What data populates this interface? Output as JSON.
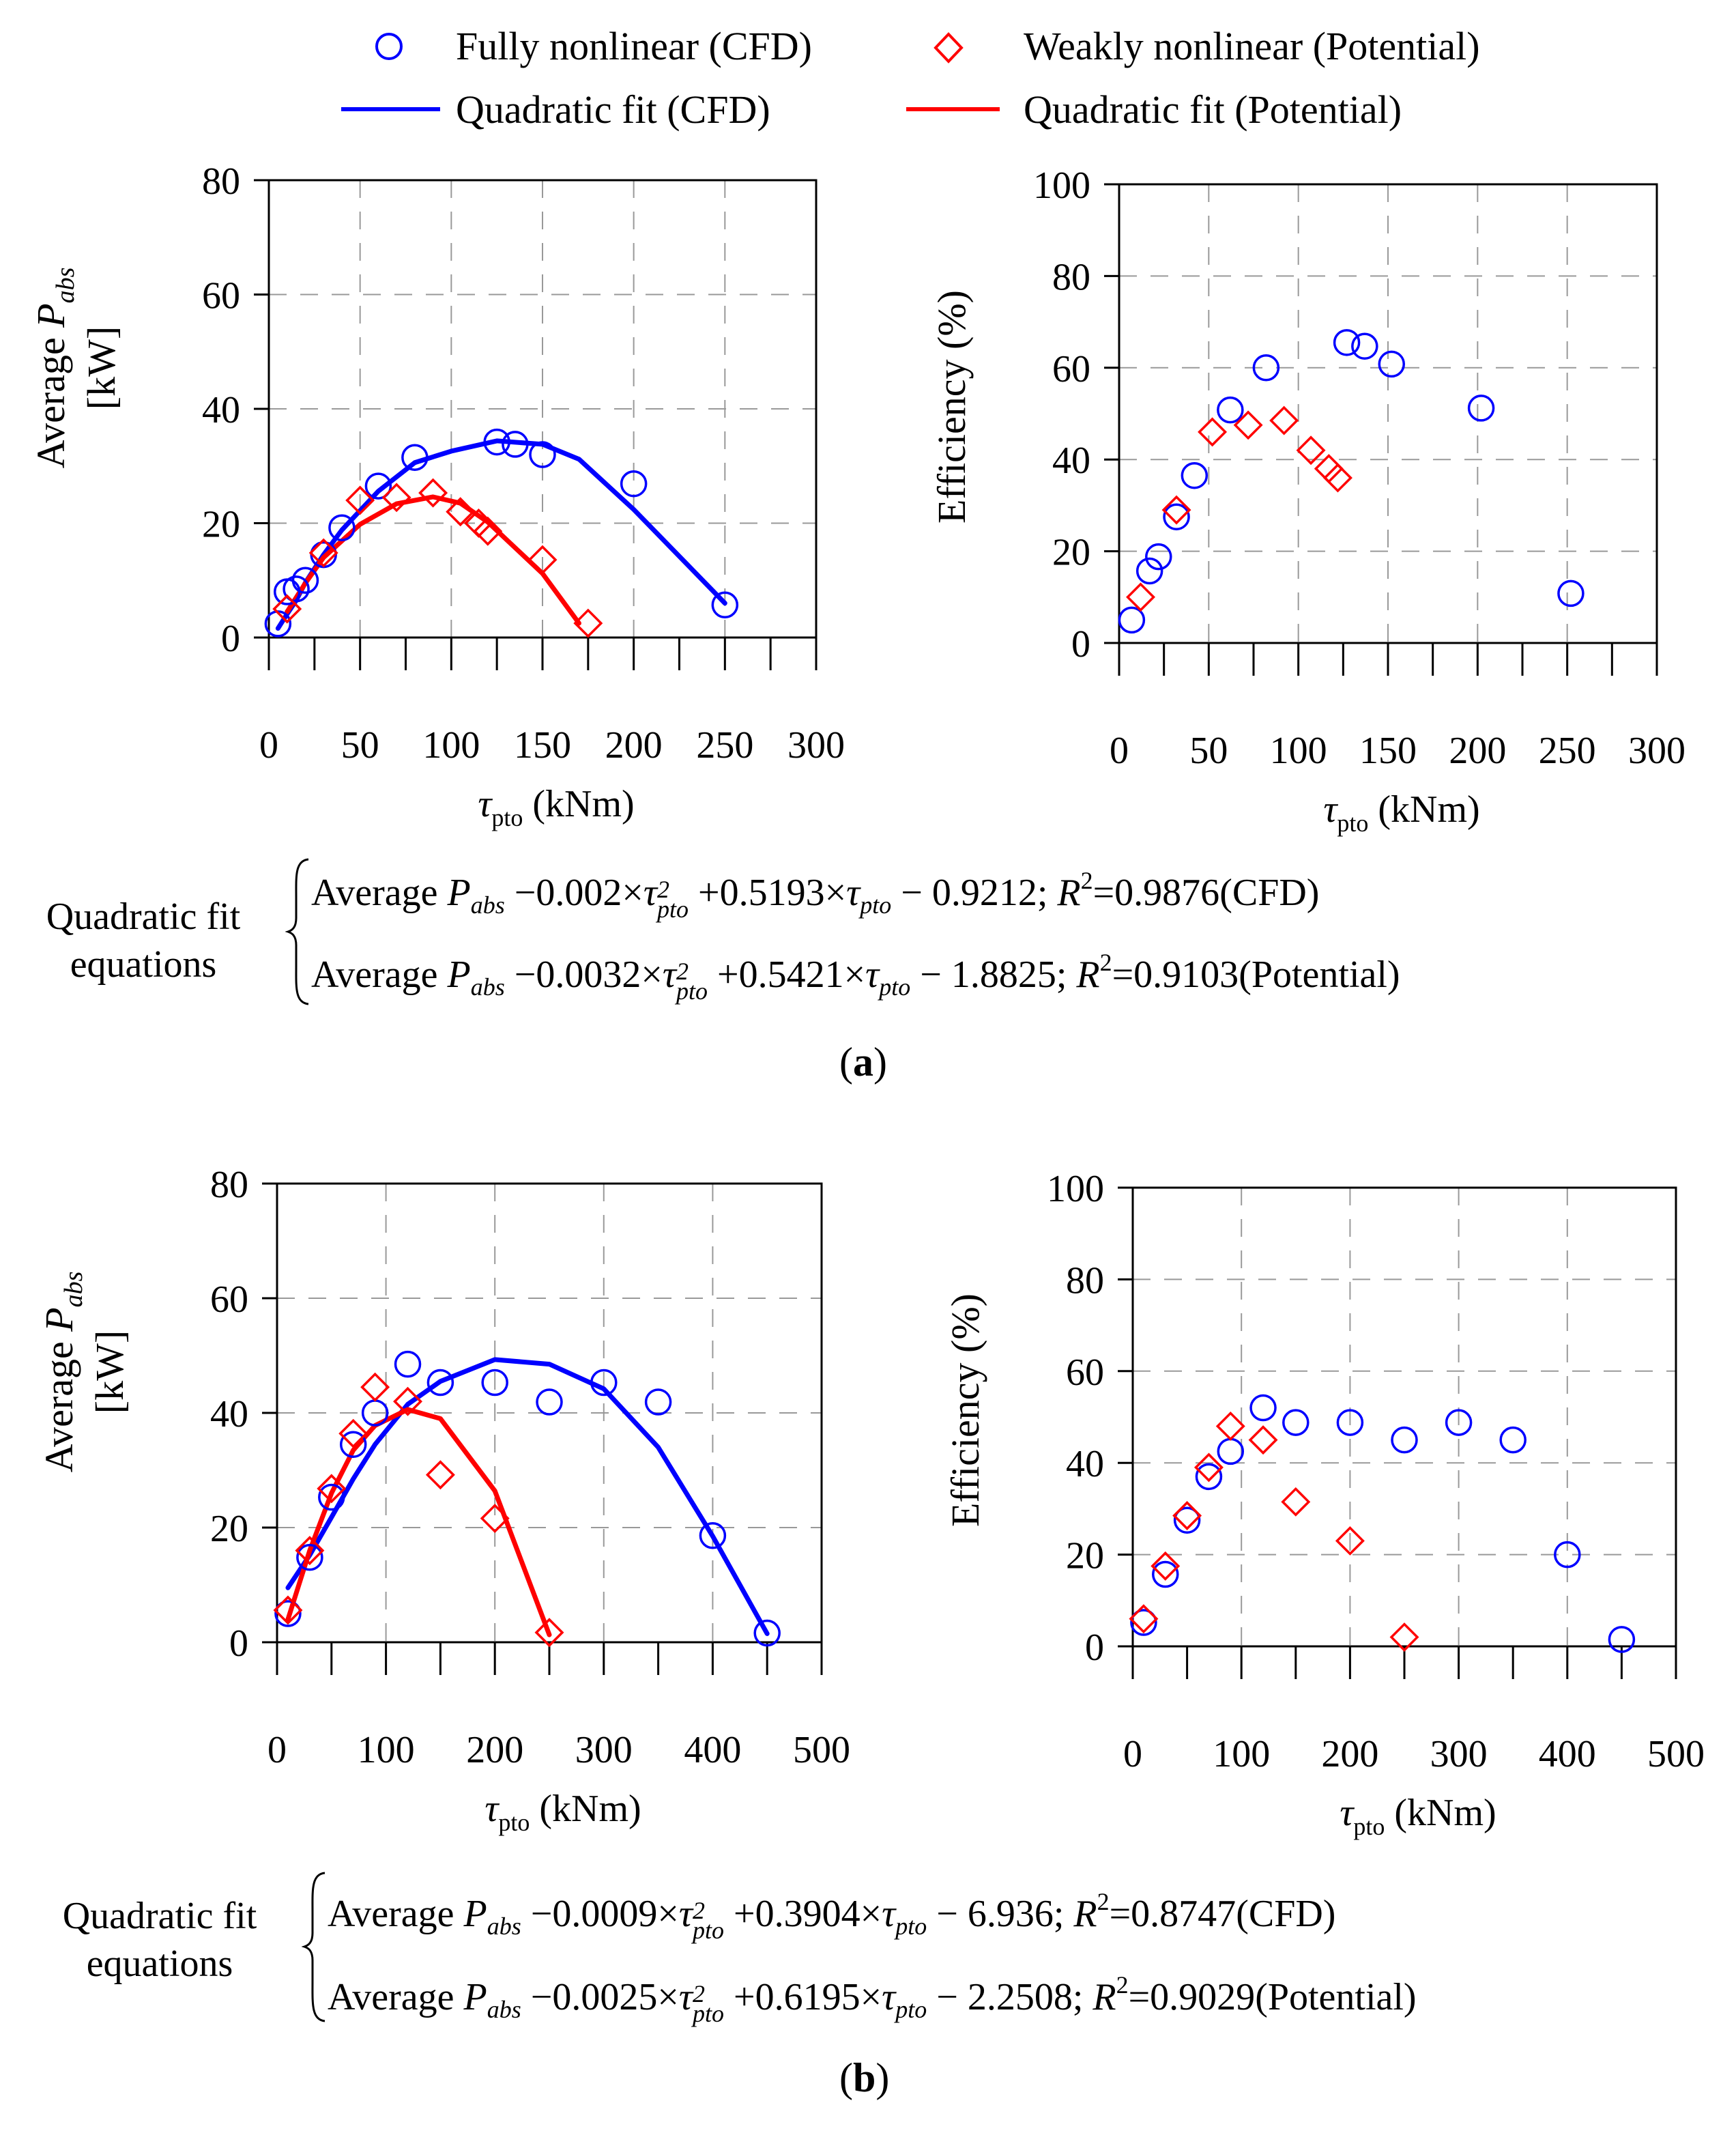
{
  "legend": {
    "cfd_points": "Fully nonlinear (CFD)",
    "pot_points": "Weakly nonlinear (Potential)",
    "cfd_fit": "Quadratic fit (CFD)",
    "pot_fit": "Quadratic fit (Potential)"
  },
  "colors": {
    "cfd": "#0000FF",
    "potential": "#FF0000",
    "grid": "#999999",
    "axis": "#000000"
  },
  "axis_text": {
    "power_ylabel_line1": "Average P",
    "power_ylabel_sub": "abs",
    "power_ylabel_line2": "[kW]",
    "eff_ylabel": "Efficiency (%)",
    "xlabel_symbol": "τ",
    "xlabel_sub": "pto",
    "xlabel_unit": " (kNm)"
  },
  "panels": [
    {
      "label": "a",
      "equation_label_line1": "Quadratic fit",
      "equation_label_line2": "equations",
      "equations": [
        {
          "lhs": "Average",
          "P": "P",
          "Psub": "abs",
          "c2": "−0.002",
          "c1": "+0.5193",
          "c0": "− 0.9212;",
          "r2": "=0.9876",
          "model": "(CFD)"
        },
        {
          "lhs": "Average",
          "P": "P",
          "Psub": "abs",
          "c2": "−0.0032",
          "c1": "+0.5421",
          "c0": "− 1.8825;",
          "r2": "=0.9103",
          "model": "(Potential)"
        }
      ]
    },
    {
      "label": "b",
      "equation_label_line1": "Quadratic fit",
      "equation_label_line2": "equations",
      "equations": [
        {
          "lhs": "Average",
          "P": "P",
          "Psub": "abs",
          "c2": "−0.0009",
          "c1": "+0.3904",
          "c0": "− 6.936;",
          "r2": "=0.8747",
          "model": "(CFD)"
        },
        {
          "lhs": "Average",
          "P": "P",
          "Psub": "abs",
          "c2": "−0.0025",
          "c1": "+0.6195",
          "c0": "− 2.2508;",
          "r2": "=0.9029",
          "model": "(Potential)"
        }
      ]
    }
  ],
  "chart_data": [
    {
      "id": "a-power",
      "type": "scatter",
      "panel": "a",
      "xlabel": "τpto (kNm)",
      "ylabel": "Average Pabs [kW]",
      "xlim": [
        0,
        300
      ],
      "ylim": [
        0,
        80
      ],
      "xticks": [
        0,
        50,
        100,
        150,
        200,
        250,
        300
      ],
      "yticks": [
        0,
        20,
        40,
        60,
        80
      ],
      "series": [
        {
          "name": "Fully nonlinear (CFD)",
          "kind": "circle",
          "color": "#0000FF",
          "x": [
            5,
            10,
            15,
            20,
            30,
            40,
            60,
            80,
            125,
            135,
            150,
            200,
            250
          ],
          "y": [
            2.4,
            8.0,
            8.5,
            10.0,
            14.5,
            19.2,
            26.5,
            31.5,
            34.2,
            33.8,
            32.0,
            26.9,
            5.7
          ]
        },
        {
          "name": "Weakly nonlinear (Potential)",
          "kind": "diamond",
          "color": "#FF0000",
          "x": [
            10,
            30,
            50,
            70,
            90,
            105,
            115,
            120,
            150,
            175
          ],
          "y": [
            5.0,
            14.8,
            24.0,
            24.5,
            25.3,
            22.0,
            20.0,
            18.6,
            13.6,
            2.5
          ]
        },
        {
          "name": "Quadratic fit (CFD)",
          "kind": "line",
          "color": "#0000FF",
          "x": [
            5,
            10,
            15,
            20,
            30,
            40,
            60,
            80,
            100,
            125,
            150,
            170,
            200,
            250
          ],
          "y": [
            1.6,
            4.1,
            6.5,
            9.6,
            14.5,
            18.8,
            25.6,
            30.6,
            32.6,
            34.4,
            33.8,
            31.2,
            22.4,
            6.0
          ]
        },
        {
          "name": "Quadratic fit (Potential)",
          "kind": "line",
          "color": "#FF0000",
          "x": [
            10,
            20,
            30,
            50,
            70,
            90,
            105,
            120,
            150,
            170
          ],
          "y": [
            4.5,
            9.5,
            14.0,
            19.8,
            23.4,
            24.6,
            23.5,
            20.2,
            11.2,
            2.5
          ]
        }
      ]
    },
    {
      "id": "a-eff",
      "type": "scatter",
      "panel": "a",
      "xlabel": "τpto (kNm)",
      "ylabel": "Efficiency (%)",
      "xlim": [
        0,
        300
      ],
      "ylim": [
        0,
        100
      ],
      "xticks": [
        0,
        50,
        100,
        150,
        200,
        250,
        300
      ],
      "yticks": [
        0,
        20,
        40,
        60,
        80,
        100
      ],
      "series": [
        {
          "name": "Fully nonlinear (CFD)",
          "kind": "circle",
          "color": "#0000FF",
          "x": [
            7,
            17,
            22,
            32,
            42,
            62,
            82,
            127,
            137,
            152,
            202,
            252
          ],
          "y": [
            5.0,
            15.7,
            18.8,
            27.5,
            36.5,
            50.8,
            60.0,
            65.5,
            64.7,
            60.8,
            51.2,
            10.8
          ]
        },
        {
          "name": "Weakly nonlinear (Potential)",
          "kind": "diamond",
          "color": "#FF0000",
          "x": [
            12,
            32,
            52,
            72,
            92,
            107,
            117,
            122
          ],
          "y": [
            10.0,
            29.0,
            46.0,
            47.5,
            48.5,
            42.0,
            38.0,
            36.0
          ]
        }
      ]
    },
    {
      "id": "b-power",
      "type": "scatter",
      "panel": "b",
      "xlabel": "τpto (kNm)",
      "ylabel": "Average Pabs [kW]",
      "xlim": [
        0,
        500
      ],
      "ylim": [
        0,
        80
      ],
      "xticks": [
        0,
        100,
        200,
        300,
        400,
        500
      ],
      "yticks": [
        0,
        20,
        40,
        60,
        80
      ],
      "series": [
        {
          "name": "Fully nonlinear (CFD)",
          "kind": "circle",
          "color": "#0000FF",
          "x": [
            10,
            30,
            50,
            70,
            90,
            120,
            150,
            200,
            250,
            300,
            350,
            400,
            450
          ],
          "y": [
            5.0,
            14.8,
            25.3,
            34.5,
            40.0,
            48.5,
            45.3,
            45.3,
            41.9,
            45.3,
            41.9,
            18.6,
            1.6
          ]
        },
        {
          "name": "Weakly nonlinear (Potential)",
          "kind": "diamond",
          "color": "#FF0000",
          "x": [
            10,
            30,
            50,
            70,
            90,
            120,
            150,
            200,
            250
          ],
          "y": [
            5.6,
            16.0,
            26.8,
            36.4,
            44.5,
            42.0,
            29.2,
            21.6,
            1.7
          ]
        },
        {
          "name": "Quadratic fit (CFD)",
          "kind": "line",
          "color": "#0000FF",
          "x": [
            10,
            30,
            50,
            70,
            90,
            120,
            150,
            200,
            250,
            300,
            350,
            400,
            450
          ],
          "y": [
            9.5,
            15.2,
            21.8,
            28.5,
            34.5,
            41.5,
            45.5,
            49.3,
            48.5,
            44.2,
            34.0,
            18.5,
            1.5
          ]
        },
        {
          "name": "Quadratic fit (Potential)",
          "kind": "line",
          "color": "#FF0000",
          "x": [
            10,
            30,
            50,
            70,
            90,
            120,
            150,
            200,
            250
          ],
          "y": [
            4.0,
            16.0,
            26.0,
            33.5,
            37.8,
            40.6,
            39.0,
            26.4,
            1.3
          ]
        }
      ]
    },
    {
      "id": "b-eff",
      "type": "scatter",
      "panel": "b",
      "xlabel": "τpto (kNm)",
      "ylabel": "Efficiency (%)",
      "xlim": [
        0,
        500
      ],
      "ylim": [
        0,
        100
      ],
      "xticks": [
        0,
        100,
        200,
        300,
        400,
        500
      ],
      "yticks": [
        0,
        20,
        40,
        60,
        80,
        100
      ],
      "series": [
        {
          "name": "Fully nonlinear (CFD)",
          "kind": "circle",
          "color": "#0000FF",
          "x": [
            10,
            30,
            50,
            70,
            90,
            120,
            150,
            200,
            250,
            300,
            350,
            400,
            450
          ],
          "y": [
            5.2,
            15.7,
            27.5,
            37.0,
            42.5,
            52.0,
            48.8,
            48.8,
            45.0,
            48.8,
            45.0,
            20.0,
            1.5
          ]
        },
        {
          "name": "Weakly nonlinear (Potential)",
          "kind": "diamond",
          "color": "#FF0000",
          "x": [
            10,
            30,
            50,
            70,
            90,
            120,
            150,
            200,
            250
          ],
          "y": [
            6.0,
            17.5,
            28.5,
            39.0,
            48.0,
            45.0,
            31.5,
            23.0,
            2.0
          ]
        }
      ]
    }
  ]
}
